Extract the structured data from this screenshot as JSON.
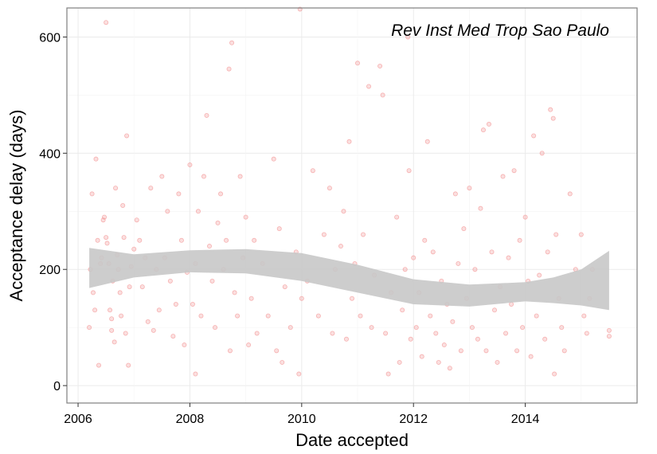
{
  "chart_data": {
    "type": "scatter",
    "xlabel": "Date accepted",
    "ylabel": "Acceptance delay (days)",
    "annotation": "Rev Inst Med Trop Sao Paulo",
    "xlim": [
      2005.8,
      2016.0
    ],
    "ylim": [
      -30,
      650
    ],
    "x_ticks": [
      2006,
      2008,
      2010,
      2012,
      2014
    ],
    "y_ticks": [
      0,
      200,
      400,
      600
    ],
    "grid": true,
    "legend": "none",
    "colors": {
      "points": "#f08080",
      "band": "#c8c8c8",
      "panel_border": "#7f7f7f",
      "grid_major": "#ebebeb"
    },
    "series": [
      {
        "kind": "points",
        "points": [
          [
            2006.2,
            100
          ],
          [
            2006.22,
            200
          ],
          [
            2006.25,
            330
          ],
          [
            2006.27,
            160
          ],
          [
            2006.3,
            130
          ],
          [
            2006.32,
            390
          ],
          [
            2006.35,
            250
          ],
          [
            2006.37,
            35
          ],
          [
            2006.4,
            210
          ],
          [
            2006.42,
            220
          ],
          [
            2006.45,
            285
          ],
          [
            2006.47,
            290
          ],
          [
            2006.5,
            625
          ],
          [
            2006.5,
            255
          ],
          [
            2006.52,
            245
          ],
          [
            2006.55,
            210
          ],
          [
            2006.57,
            130
          ],
          [
            2006.6,
            115
          ],
          [
            2006.6,
            95
          ],
          [
            2006.62,
            180
          ],
          [
            2006.65,
            75
          ],
          [
            2006.67,
            340
          ],
          [
            2006.7,
            225
          ],
          [
            2006.72,
            200
          ],
          [
            2006.75,
            160
          ],
          [
            2006.77,
            120
          ],
          [
            2006.8,
            310
          ],
          [
            2006.82,
            255
          ],
          [
            2006.85,
            90
          ],
          [
            2006.87,
            430
          ],
          [
            2006.9,
            35
          ],
          [
            2006.92,
            170
          ],
          [
            2006.95,
            205
          ],
          [
            2007.0,
            235
          ],
          [
            2007.05,
            285
          ],
          [
            2007.1,
            250
          ],
          [
            2007.15,
            170
          ],
          [
            2007.2,
            220
          ],
          [
            2007.25,
            110
          ],
          [
            2007.3,
            340
          ],
          [
            2007.35,
            95
          ],
          [
            2007.4,
            200
          ],
          [
            2007.45,
            130
          ],
          [
            2007.5,
            360
          ],
          [
            2007.55,
            220
          ],
          [
            2007.6,
            300
          ],
          [
            2007.65,
            180
          ],
          [
            2007.7,
            85
          ],
          [
            2007.75,
            140
          ],
          [
            2007.8,
            330
          ],
          [
            2007.85,
            250
          ],
          [
            2007.9,
            70
          ],
          [
            2007.95,
            195
          ],
          [
            2008.0,
            380
          ],
          [
            2008.05,
            140
          ],
          [
            2008.1,
            210
          ],
          [
            2008.1,
            20
          ],
          [
            2008.15,
            300
          ],
          [
            2008.2,
            120
          ],
          [
            2008.25,
            360
          ],
          [
            2008.3,
            465
          ],
          [
            2008.35,
            240
          ],
          [
            2008.4,
            180
          ],
          [
            2008.45,
            100
          ],
          [
            2008.5,
            280
          ],
          [
            2008.55,
            330
          ],
          [
            2008.6,
            200
          ],
          [
            2008.65,
            250
          ],
          [
            2008.7,
            545
          ],
          [
            2008.72,
            60
          ],
          [
            2008.75,
            590
          ],
          [
            2008.8,
            160
          ],
          [
            2008.85,
            120
          ],
          [
            2008.9,
            360
          ],
          [
            2008.95,
            220
          ],
          [
            2009.0,
            290
          ],
          [
            2009.05,
            70
          ],
          [
            2009.1,
            150
          ],
          [
            2009.15,
            250
          ],
          [
            2009.2,
            90
          ],
          [
            2009.3,
            210
          ],
          [
            2009.4,
            120
          ],
          [
            2009.5,
            390
          ],
          [
            2009.55,
            60
          ],
          [
            2009.6,
            270
          ],
          [
            2009.65,
            40
          ],
          [
            2009.7,
            170
          ],
          [
            2009.8,
            100
          ],
          [
            2009.9,
            230
          ],
          [
            2009.95,
            20
          ],
          [
            2009.97,
            648
          ],
          [
            2010.0,
            150
          ],
          [
            2010.1,
            180
          ],
          [
            2010.2,
            370
          ],
          [
            2010.3,
            120
          ],
          [
            2010.4,
            260
          ],
          [
            2010.5,
            340
          ],
          [
            2010.55,
            90
          ],
          [
            2010.6,
            200
          ],
          [
            2010.7,
            240
          ],
          [
            2010.75,
            300
          ],
          [
            2010.8,
            80
          ],
          [
            2010.85,
            420
          ],
          [
            2010.9,
            150
          ],
          [
            2010.95,
            210
          ],
          [
            2011.0,
            555
          ],
          [
            2011.05,
            120
          ],
          [
            2011.1,
            260
          ],
          [
            2011.2,
            515
          ],
          [
            2011.25,
            100
          ],
          [
            2011.3,
            190
          ],
          [
            2011.4,
            550
          ],
          [
            2011.45,
            500
          ],
          [
            2011.5,
            90
          ],
          [
            2011.55,
            20
          ],
          [
            2011.6,
            160
          ],
          [
            2011.7,
            290
          ],
          [
            2011.75,
            40
          ],
          [
            2011.8,
            130
          ],
          [
            2011.85,
            200
          ],
          [
            2011.9,
            600
          ],
          [
            2011.92,
            370
          ],
          [
            2011.95,
            80
          ],
          [
            2012.0,
            220
          ],
          [
            2012.05,
            100
          ],
          [
            2012.1,
            160
          ],
          [
            2012.15,
            50
          ],
          [
            2012.2,
            250
          ],
          [
            2012.25,
            420
          ],
          [
            2012.3,
            120
          ],
          [
            2012.35,
            230
          ],
          [
            2012.4,
            90
          ],
          [
            2012.45,
            40
          ],
          [
            2012.5,
            180
          ],
          [
            2012.55,
            70
          ],
          [
            2012.6,
            140
          ],
          [
            2012.65,
            30
          ],
          [
            2012.7,
            110
          ],
          [
            2012.75,
            330
          ],
          [
            2012.8,
            210
          ],
          [
            2012.85,
            60
          ],
          [
            2012.9,
            270
          ],
          [
            2012.95,
            150
          ],
          [
            2013.0,
            340
          ],
          [
            2013.05,
            100
          ],
          [
            2013.1,
            200
          ],
          [
            2013.15,
            80
          ],
          [
            2013.2,
            305
          ],
          [
            2013.25,
            440
          ],
          [
            2013.3,
            60
          ],
          [
            2013.35,
            450
          ],
          [
            2013.4,
            230
          ],
          [
            2013.45,
            130
          ],
          [
            2013.5,
            40
          ],
          [
            2013.55,
            170
          ],
          [
            2013.6,
            360
          ],
          [
            2013.65,
            90
          ],
          [
            2013.7,
            220
          ],
          [
            2013.75,
            140
          ],
          [
            2013.8,
            370
          ],
          [
            2013.85,
            60
          ],
          [
            2013.9,
            250
          ],
          [
            2013.95,
            100
          ],
          [
            2014.0,
            290
          ],
          [
            2014.05,
            180
          ],
          [
            2014.1,
            50
          ],
          [
            2014.15,
            430
          ],
          [
            2014.2,
            120
          ],
          [
            2014.25,
            190
          ],
          [
            2014.3,
            400
          ],
          [
            2014.35,
            80
          ],
          [
            2014.4,
            230
          ],
          [
            2014.45,
            475
          ],
          [
            2014.5,
            460
          ],
          [
            2014.52,
            20
          ],
          [
            2014.55,
            260
          ],
          [
            2014.6,
            150
          ],
          [
            2014.65,
            100
          ],
          [
            2014.7,
            60
          ],
          [
            2014.8,
            330
          ],
          [
            2014.9,
            200
          ],
          [
            2015.0,
            260
          ],
          [
            2015.05,
            120
          ],
          [
            2015.1,
            90
          ],
          [
            2015.15,
            150
          ],
          [
            2015.2,
            200
          ],
          [
            2015.5,
            95
          ],
          [
            2015.5,
            85
          ]
        ]
      },
      {
        "kind": "smooth-band",
        "x": [
          2006.2,
          2007.0,
          2008.0,
          2009.0,
          2010.0,
          2011.0,
          2012.0,
          2013.0,
          2014.0,
          2014.5,
          2015.0,
          2015.5
        ],
        "lower": [
          168,
          186,
          195,
          193,
          180,
          160,
          140,
          136,
          145,
          142,
          138,
          130
        ],
        "upper": [
          237,
          226,
          233,
          235,
          228,
          208,
          183,
          174,
          178,
          186,
          200,
          232
        ]
      }
    ]
  }
}
